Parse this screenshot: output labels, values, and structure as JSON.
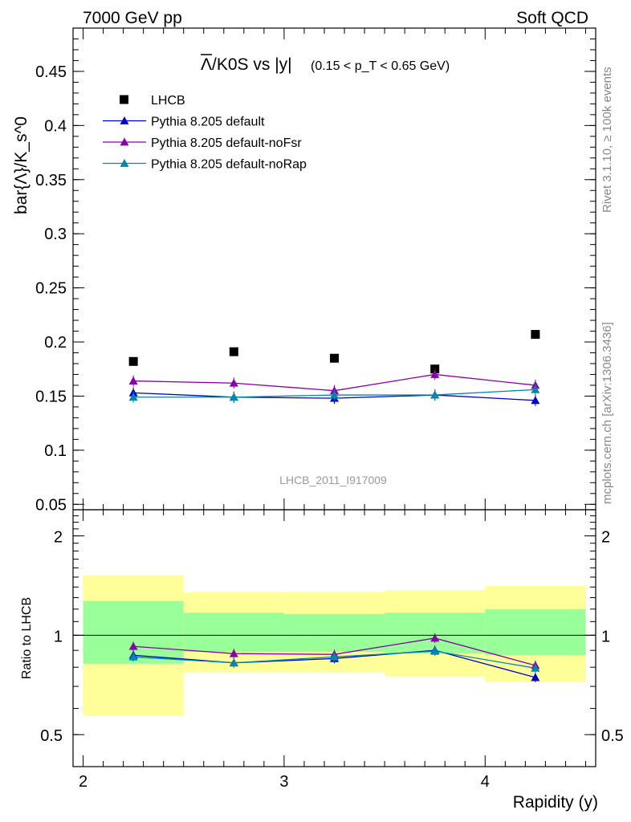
{
  "header": {
    "energy_label": "7000 GeV pp",
    "category_label": "Soft QCD"
  },
  "side_labels": {
    "rivet": "Rivet 3.1.10, ≥ 100k events",
    "source": "mcplots.cern.ch [arXiv:1306.3436]"
  },
  "watermark": "LHCB_2011_I917009",
  "colors": {
    "data": "#000000",
    "default": "#0000cc",
    "noFsr": "#8800aa",
    "noRap": "#0088aa",
    "band_inner": "#99ff99",
    "band_outer": "#ffff99"
  },
  "chart_data": [
    {
      "type": "scatter",
      "panel": "main",
      "title_main": "Λ/K0S vs |y|",
      "title_cut": "(0.15 < p_T < 0.65 GeV)",
      "ylabel": "bar{Λ}/K_s^0",
      "ylim": [
        0.045,
        0.49
      ],
      "xlim": [
        1.95,
        4.55
      ],
      "yticks": [
        0.05,
        0.1,
        0.15,
        0.2,
        0.25,
        0.3,
        0.35,
        0.4,
        0.45
      ],
      "ytick_labels": [
        "0.05",
        "0.1",
        "0.15",
        "0.2",
        "0.25",
        "0.3",
        "0.35",
        "0.4",
        "0.45"
      ],
      "x": [
        2.25,
        2.75,
        3.25,
        3.75,
        4.25
      ],
      "series": [
        {
          "key": "data",
          "name": "LHCB",
          "marker": "square",
          "values": [
            0.182,
            0.191,
            0.185,
            0.175,
            0.207
          ]
        },
        {
          "key": "default",
          "name": "Pythia 8.205 default",
          "marker": "triangle",
          "values": [
            0.153,
            0.149,
            0.148,
            0.151,
            0.146
          ]
        },
        {
          "key": "noFsr",
          "name": "Pythia 8.205 default-noFsr",
          "marker": "triangle",
          "values": [
            0.164,
            0.162,
            0.155,
            0.17,
            0.16
          ]
        },
        {
          "key": "noRap",
          "name": "Pythia 8.205 default-noRap",
          "marker": "triangle",
          "values": [
            0.149,
            0.149,
            0.151,
            0.151,
            0.156
          ]
        }
      ],
      "legend": [
        "LHCB",
        "Pythia 8.205 default",
        "Pythia 8.205 default-noFsr",
        "Pythia 8.205 default-noRap"
      ],
      "legend_position": "top-left"
    },
    {
      "type": "line",
      "panel": "ratio",
      "ylabel": "Ratio to LHCB",
      "xlabel": "Rapidity (y)",
      "ylim": [
        0.4,
        2.4
      ],
      "yscale": "log",
      "xlim": [
        1.95,
        4.55
      ],
      "xticks": [
        2,
        3,
        4
      ],
      "xtick_labels": [
        "2",
        "3",
        "4"
      ],
      "yticks": [
        0.5,
        1,
        2
      ],
      "ytick_labels": [
        "0.5",
        "1",
        "2"
      ],
      "x": [
        2.25,
        2.75,
        3.25,
        3.75,
        4.25
      ],
      "bins": [
        [
          2.0,
          2.5
        ],
        [
          2.5,
          3.0
        ],
        [
          3.0,
          3.5
        ],
        [
          3.5,
          4.0
        ],
        [
          4.0,
          4.5
        ]
      ],
      "band_inner": [
        [
          0.82,
          1.27
        ],
        [
          0.89,
          1.17
        ],
        [
          0.89,
          1.16
        ],
        [
          0.88,
          1.17
        ],
        [
          0.87,
          1.2
        ]
      ],
      "band_outer": [
        [
          0.57,
          1.52
        ],
        [
          0.77,
          1.35
        ],
        [
          0.77,
          1.35
        ],
        [
          0.75,
          1.37
        ],
        [
          0.72,
          1.41
        ]
      ],
      "series": [
        {
          "key": "default",
          "name": "Pythia 8.205 default",
          "values": [
            0.87,
            0.825,
            0.85,
            0.9,
            0.745
          ]
        },
        {
          "key": "noFsr",
          "name": "Pythia 8.205 default-noFsr",
          "values": [
            0.925,
            0.88,
            0.875,
            0.98,
            0.81
          ]
        },
        {
          "key": "noRap",
          "name": "Pythia 8.205 default-noRap",
          "values": [
            0.86,
            0.825,
            0.86,
            0.895,
            0.795
          ]
        }
      ]
    }
  ]
}
